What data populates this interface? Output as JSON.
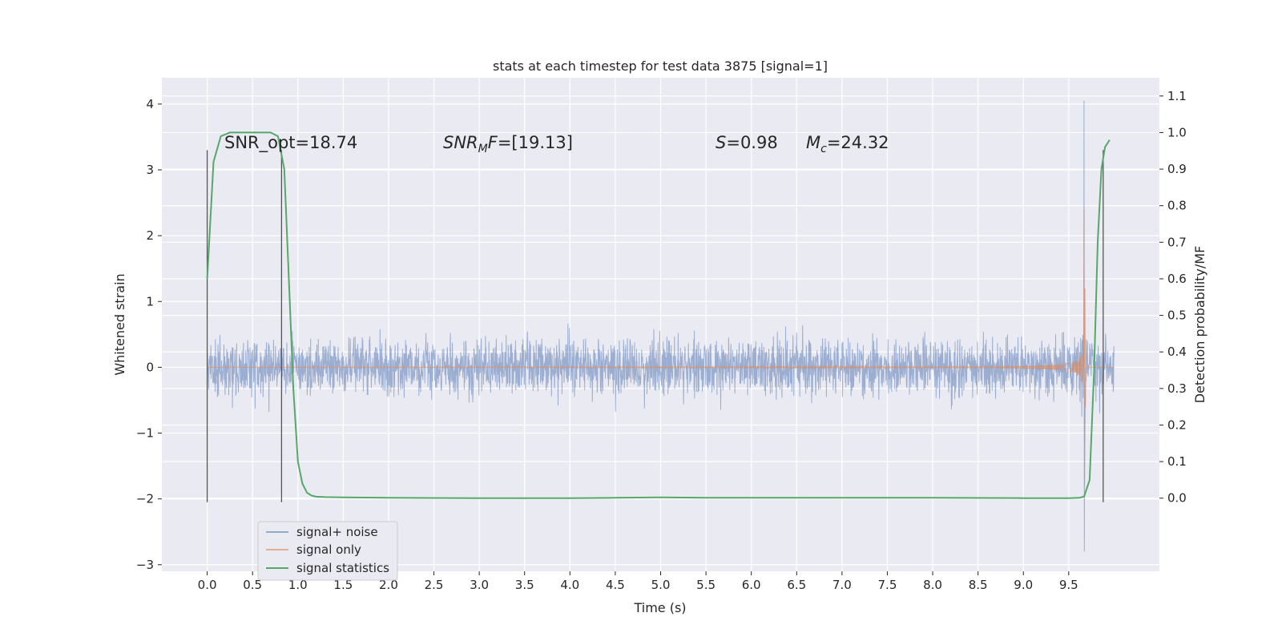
{
  "chart_data": {
    "type": "line",
    "title": "stats at each timestep for test data 3875 [signal=1]",
    "xlabel": "Time (s)",
    "ylabel_left": "Whitened strain",
    "ylabel_right": "Detection probability/MF",
    "xlim": [
      -0.5,
      10.5
    ],
    "ylim_left": [
      -3.1,
      4.4
    ],
    "ylim_right": [
      -0.2,
      1.15
    ],
    "x_ticks": [
      0.0,
      0.5,
      1.0,
      1.5,
      2.0,
      2.5,
      3.0,
      3.5,
      4.0,
      4.5,
      5.0,
      5.5,
      6.0,
      6.5,
      7.0,
      7.5,
      8.0,
      8.5,
      9.0,
      9.5
    ],
    "x_tick_labels": [
      "0.0",
      "0.5",
      "1.0",
      "1.5",
      "2.0",
      "2.5",
      "3.0",
      "3.5",
      "4.0",
      "4.5",
      "5.0",
      "5.5",
      "6.0",
      "6.5",
      "7.0",
      "7.5",
      "8.0",
      "8.5",
      "9.0",
      "9.5"
    ],
    "y_left_ticks": [
      -3,
      -2,
      -1,
      0,
      1,
      2,
      3,
      4
    ],
    "y_left_tick_labels": [
      "−3",
      "−2",
      "−1",
      "0",
      "1",
      "2",
      "3",
      "4"
    ],
    "y_right_ticks": [
      0.0,
      0.1,
      0.2,
      0.3,
      0.4,
      0.5,
      0.6,
      0.7,
      0.8,
      0.9,
      1.0,
      1.1
    ],
    "y_right_tick_labels": [
      "0.0",
      "0.1",
      "0.2",
      "0.3",
      "0.4",
      "0.5",
      "0.6",
      "0.7",
      "0.8",
      "0.9",
      "1.0",
      "1.1"
    ],
    "grid": true,
    "legend_position": "lower-left",
    "colors": {
      "background": "#eaeaf2",
      "signal_noise": "#4c72b0",
      "signal_only": "#dd8452",
      "signal_statistics": "#55a868",
      "vertical_markers": "#555555"
    },
    "annotations": [
      {
        "id": "snr-opt",
        "text": "SNR_opt=18.74"
      },
      {
        "id": "snr-mf",
        "text": "=[19.13]",
        "math": "SNR",
        "sub": "M",
        "math2": "F"
      },
      {
        "id": "s-stat",
        "text": "=0.98",
        "math": "S"
      },
      {
        "id": "mc-stat",
        "text": "=24.32",
        "math": "M",
        "sub": "c"
      }
    ],
    "vertical_lines": [
      {
        "x": 0.0,
        "y_range": [
          -2.05,
          3.3
        ]
      },
      {
        "x": 0.82,
        "y_range": [
          -2.05,
          3.3
        ]
      },
      {
        "x": 9.88,
        "y_range": [
          -2.05,
          3.3
        ]
      }
    ],
    "series": [
      {
        "name": "signal+ noise",
        "axis": "left",
        "x_range": [
          0.0,
          10.0
        ],
        "typical_amplitude": 0.55,
        "max_value": 4.05,
        "min_value": -2.8,
        "spike_time": 9.67
      },
      {
        "name": "signal only",
        "axis": "left",
        "x_range": [
          0.0,
          10.0
        ],
        "chirp_peak_time": 9.67,
        "chirp_peak_amplitude": 2.4
      },
      {
        "name": "signal statistics",
        "axis": "right",
        "x": [
          0.0,
          0.07,
          0.15,
          0.25,
          0.35,
          0.5,
          0.6,
          0.7,
          0.78,
          0.85,
          0.9,
          0.95,
          1.0,
          1.05,
          1.1,
          1.15,
          1.2,
          1.3,
          1.5,
          2.0,
          3.0,
          4.0,
          4.5,
          5.0,
          5.5,
          6.0,
          7.0,
          8.0,
          9.0,
          9.5,
          9.62,
          9.67,
          9.73,
          9.78,
          9.82,
          9.86,
          9.9,
          9.95
        ],
        "y": [
          0.6,
          0.92,
          0.99,
          1.0,
          1.0,
          1.0,
          1.0,
          1.0,
          0.99,
          0.9,
          0.6,
          0.3,
          0.1,
          0.04,
          0.015,
          0.007,
          0.004,
          0.003,
          0.002,
          0.001,
          0.0,
          0.0,
          0.001,
          0.002,
          0.001,
          0.001,
          0.001,
          0.001,
          0.0,
          0.0,
          0.001,
          0.005,
          0.05,
          0.35,
          0.7,
          0.9,
          0.96,
          0.98
        ]
      }
    ]
  }
}
